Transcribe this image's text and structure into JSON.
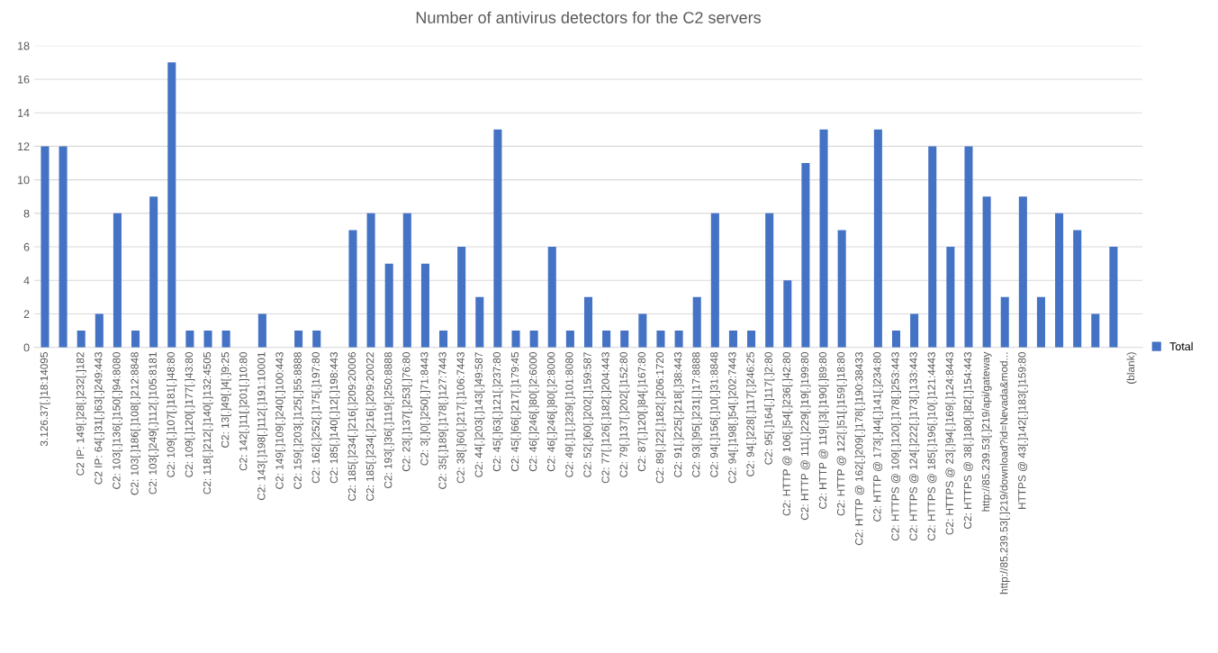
{
  "chart_data": {
    "type": "bar",
    "title": "Number of antivirus detectors for the C2 servers",
    "categories": [
      "3.126.37[.]18:14095",
      null,
      "C2 IP: 149[.]28[.]232[.]182",
      "C2 IP: 64[.]31[.]63[.]249:443",
      "C2: 103[.]136[.]150[.]94:8080",
      "C2: 103[.]186[.]108[.]212:8848",
      "C2: 103[.]249[.]112[.]105:8181",
      "C2: 109[.]107[.]181[.]48:80",
      "C2: 109[.]120[.]177[.]43:80",
      "C2: 118[.]212[.]140[.]132:4505",
      "C2: 13[.]49[.]4[.]9:25",
      "C2: 142[.]11[.]201[.]10:80",
      "C2: 143[.]198[.]112[.]191:10001",
      "C2: 149[.]109[.]240[.]100:443",
      "C2: 159[.]203[.]125[.]55:8888",
      "C2: 162[.]252[.]175[.]197:80",
      "C2: 185[.]140[.]12[.]198:443",
      "C2: 185[.]234[.]216[.]209:20006",
      "C2: 185[.]234[.]216[.]209:20022",
      "C2: 193[.]36[.]119[.]250:8888",
      "C2: 23[.]137[.]253[.]76:80",
      "C2: 3[.]0[.]250[.]71:8443",
      "C2: 35[.]189[.]178[.]127:7443",
      "C2: 38[.]60[.]217[.]106:7443",
      "C2: 44[.]203[.]143[.]49:587",
      "C2: 45[.]63[.]121[.]237:80",
      "C2: 45[.]66[.]217[.]179:45",
      "C2: 46[.]246[.]80[.]2:6000",
      "C2: 46[.]246[.]80[.]2:8000",
      "C2: 49[.]1[.]239[.]101:8080",
      "C2: 52[.]60[.]202[.]159:587",
      "C2: 77[.]126[.]182[.]204:443",
      "C2: 79[.]137[.]202[.]152:80",
      "C2: 87[.]120[.]84[.]167:80",
      "C2: 89[.]22[.]182[.]206:1720",
      "C2: 91[.]225[.]218[.]38:443",
      "C2: 93[.]95[.]231[.]17:8888",
      "C2: 94[.]156[.]10[.]31:8848",
      "C2: 94[.]198[.]54[.]202:7443",
      "C2: 94[.]228[.]117[.]246:25",
      "C2: 95[.]164[.]117[.]2:80",
      "C2: HTTP @ 106[.]54[.]236[.]42:80",
      "C2: HTTP @ 111[.]229[.]19[.]199:80",
      "C2: HTTP @ 119[.]3[.]190[.]89:80",
      "C2: HTTP @ 122[.]51[.]159[.]18:80",
      "C2: HTTP @ 162[.]209[.]178[.]190:38433",
      "C2: HTTP @ 173[.]44[.]141[.]234:80",
      "C2: HTTPS @ 109[.]120[.]178[.]253:443",
      "C2: HTTPS @ 124[.]222[.]173[.]133:443",
      "C2: HTTPS @ 185[.]196[.]10[.]121:4443",
      "C2: HTTPS @ 23[.]94[.]169[.]124:8443",
      "C2: HTTPS @ 38[.]180[.]82[.]154:443",
      "http://85.239.53[.]219/api/gateway",
      "http://85.239.53[.]219/download?id=Nevada&mod...",
      "HTTPS @ 43[.]142[.]183[.]159:80",
      null,
      null,
      null,
      null,
      null,
      "(blank)"
    ],
    "series": [
      {
        "name": "Total",
        "color": "#4472c4",
        "values": [
          12,
          12,
          1,
          2,
          8,
          1,
          9,
          17,
          1,
          1,
          1,
          0,
          2,
          0,
          1,
          1,
          0,
          7,
          8,
          5,
          8,
          5,
          1,
          6,
          3,
          13,
          1,
          1,
          6,
          1,
          3,
          1,
          1,
          2,
          1,
          1,
          3,
          8,
          1,
          1,
          8,
          4,
          11,
          13,
          7,
          0,
          13,
          1,
          2,
          12,
          6,
          12,
          9,
          3,
          9,
          3,
          8,
          7,
          2,
          6,
          null
        ]
      }
    ],
    "ylim": [
      0,
      18
    ],
    "yticks": [
      0,
      2,
      4,
      6,
      8,
      10,
      12,
      14,
      16,
      18
    ],
    "grid": "y",
    "legend": "right"
  }
}
